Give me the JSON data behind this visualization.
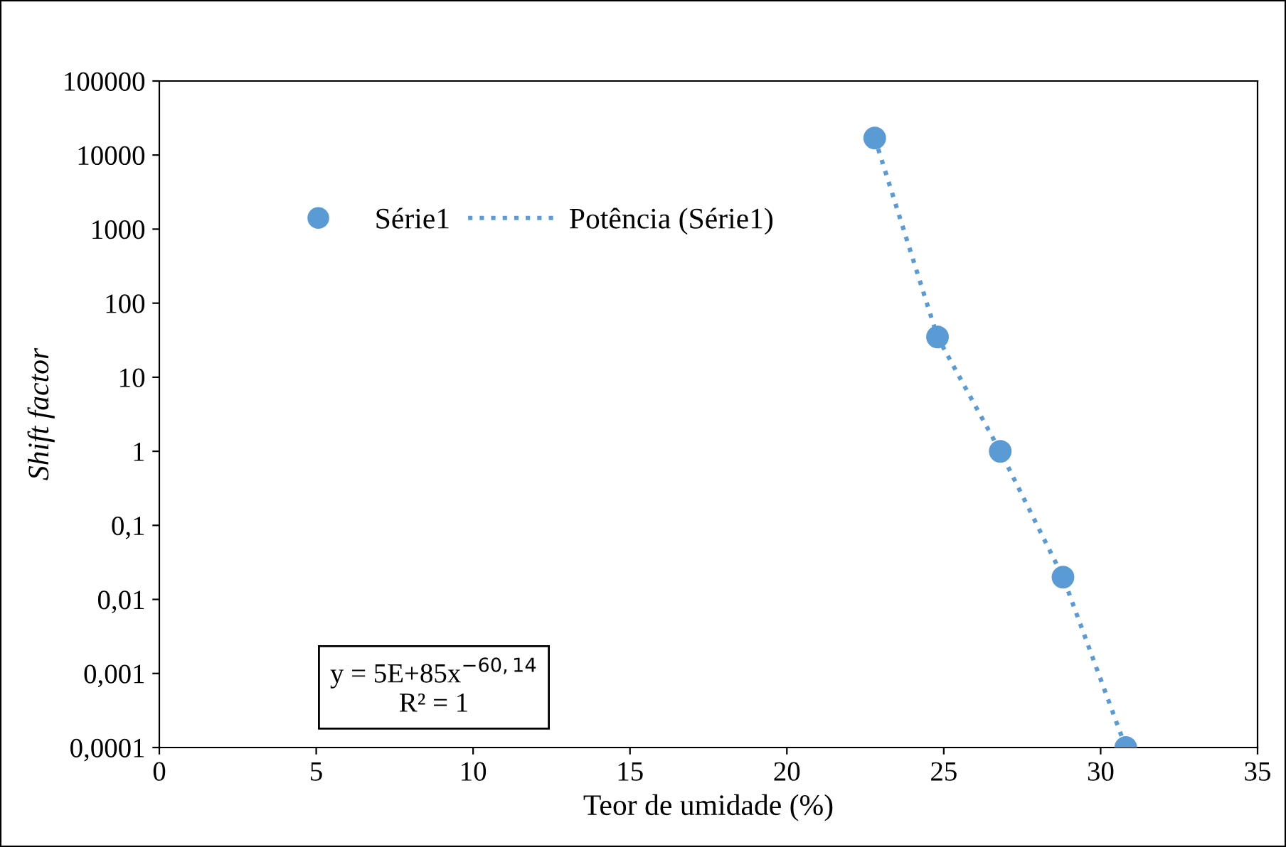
{
  "chart_data": {
    "type": "scatter",
    "xlabel": "Teor de umidade (%)",
    "ylabel": "Shift factor",
    "x": [
      22.8,
      24.8,
      26.8,
      28.8,
      30.8
    ],
    "series": [
      {
        "name": "Série1",
        "color": "#5b9bd5",
        "marker": "circle",
        "values": [
          17000,
          35,
          1,
          0.02,
          0.0001
        ]
      },
      {
        "name": "Potência (Série1)",
        "type": "line",
        "color": "#5b9bd5",
        "line_style": "dotted",
        "marker": "none",
        "x": [
          22.8,
          24.8,
          26.8,
          28.8,
          30.8
        ],
        "values": [
          17000,
          35,
          1,
          0.02,
          0.0001
        ]
      }
    ],
    "log": "y",
    "xlim": [
      0,
      35
    ],
    "xticks": [
      0,
      5,
      10,
      15,
      20,
      25,
      30,
      35
    ],
    "ylim": [
      0.0001,
      100000
    ],
    "yticks": [
      {
        "value": 0.0001,
        "label": "0,0001"
      },
      {
        "value": 0.001,
        "label": "0,001"
      },
      {
        "value": 0.01,
        "label": "0,01"
      },
      {
        "value": 0.1,
        "label": "0,1"
      },
      1,
      10,
      100,
      1000,
      10000,
      100000
    ],
    "grid": false,
    "legend": "top left",
    "annotations": [
      "y = 5E+85x$^{−60,14}$\nR² = 1"
    ]
  }
}
